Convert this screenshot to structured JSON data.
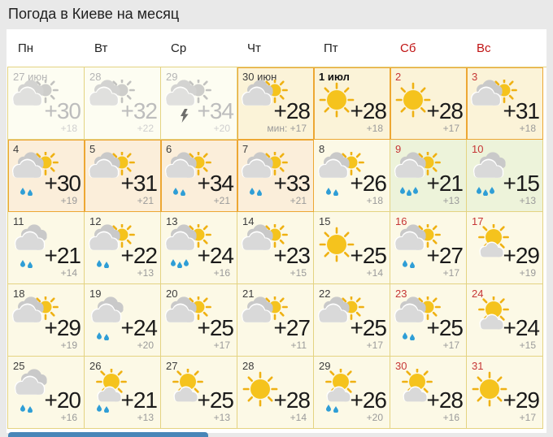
{
  "title": "Погода в Киеве на месяц",
  "weekday_header": [
    {
      "label": "Пн",
      "weekend": false
    },
    {
      "label": "Вт",
      "weekend": false
    },
    {
      "label": "Ср",
      "weekend": false
    },
    {
      "label": "Чт",
      "weekend": false
    },
    {
      "label": "Пт",
      "weekend": false
    },
    {
      "label": "Сб",
      "weekend": true
    },
    {
      "label": "Вс",
      "weekend": true
    }
  ],
  "calendar": {
    "days": [
      {
        "date": "27 июн",
        "temp_max": "+30",
        "temp_min": "+18",
        "icon": "cloud-sun",
        "past": true,
        "weekend": false,
        "highlight": false,
        "bg": "past"
      },
      {
        "date": "28",
        "temp_max": "+32",
        "temp_min": "+22",
        "icon": "cloud-sun",
        "past": true,
        "weekend": false,
        "highlight": false,
        "bg": "past"
      },
      {
        "date": "29",
        "temp_max": "+34",
        "temp_min": "+20",
        "icon": "cloud-sun-thunder",
        "past": true,
        "weekend": false,
        "highlight": false,
        "bg": "past"
      },
      {
        "date": "30 июн",
        "temp_max": "+28",
        "temp_min": "+17",
        "min_label": "мин:",
        "icon": "cloud-sun",
        "past": false,
        "weekend": false,
        "highlight": true,
        "bg": "warm"
      },
      {
        "date": "1 июл",
        "temp_max": "+28",
        "temp_min": "+18",
        "icon": "sun",
        "past": false,
        "weekend": false,
        "bold": true,
        "highlight": true,
        "bg": "warm"
      },
      {
        "date": "2",
        "temp_max": "+28",
        "temp_min": "+17",
        "icon": "sun",
        "past": false,
        "weekend": true,
        "highlight": true,
        "bg": "warm"
      },
      {
        "date": "3",
        "temp_max": "+31",
        "temp_min": "+18",
        "icon": "cloud-sun",
        "past": false,
        "weekend": true,
        "highlight": true,
        "bg": "warm"
      },
      {
        "date": "4",
        "temp_max": "+30",
        "temp_min": "+19",
        "icon": "cloud-sun-rain2",
        "past": false,
        "weekend": false,
        "highlight": true,
        "bg": "peach"
      },
      {
        "date": "5",
        "temp_max": "+31",
        "temp_min": "+21",
        "icon": "cloud-sun",
        "past": false,
        "weekend": false,
        "highlight": true,
        "bg": "peach"
      },
      {
        "date": "6",
        "temp_max": "+34",
        "temp_min": "+21",
        "icon": "cloud-sun-rain2",
        "past": false,
        "weekend": false,
        "highlight": true,
        "bg": "peach"
      },
      {
        "date": "7",
        "temp_max": "+33",
        "temp_min": "+21",
        "icon": "cloud-sun-rain2",
        "past": false,
        "weekend": false,
        "highlight": true,
        "bg": "peach"
      },
      {
        "date": "8",
        "temp_max": "+26",
        "temp_min": "+18",
        "icon": "cloud-sun-rain2",
        "past": false,
        "weekend": false,
        "highlight": false,
        "bg": "cream"
      },
      {
        "date": "9",
        "temp_max": "+21",
        "temp_min": "+13",
        "icon": "cloud-sun-rain3",
        "past": false,
        "weekend": true,
        "highlight": false,
        "bg": "green"
      },
      {
        "date": "10",
        "temp_max": "+15",
        "temp_min": "+13",
        "icon": "cloud-rain3",
        "past": false,
        "weekend": true,
        "highlight": false,
        "bg": "green"
      },
      {
        "date": "11",
        "temp_max": "+21",
        "temp_min": "+14",
        "icon": "cloud-rain2",
        "past": false,
        "weekend": false,
        "highlight": false,
        "bg": "cream"
      },
      {
        "date": "12",
        "temp_max": "+22",
        "temp_min": "+13",
        "icon": "cloud-sun-rain2",
        "past": false,
        "weekend": false,
        "highlight": false,
        "bg": "cream"
      },
      {
        "date": "13",
        "temp_max": "+24",
        "temp_min": "+16",
        "icon": "cloud-sun-rain3",
        "past": false,
        "weekend": false,
        "highlight": false,
        "bg": "cream"
      },
      {
        "date": "14",
        "temp_max": "+23",
        "temp_min": "+15",
        "icon": "cloud-sun",
        "past": false,
        "weekend": false,
        "highlight": false,
        "bg": "cream"
      },
      {
        "date": "15",
        "temp_max": "+25",
        "temp_min": "+14",
        "icon": "sun",
        "past": false,
        "weekend": false,
        "highlight": false,
        "bg": "cream"
      },
      {
        "date": "16",
        "temp_max": "+27",
        "temp_min": "+17",
        "icon": "cloud-sun-rain2",
        "past": false,
        "weekend": true,
        "highlight": false,
        "bg": "cream"
      },
      {
        "date": "17",
        "temp_max": "+29",
        "temp_min": "+19",
        "icon": "sun-cloud",
        "past": false,
        "weekend": true,
        "highlight": false,
        "bg": "cream"
      },
      {
        "date": "18",
        "temp_max": "+29",
        "temp_min": "+19",
        "icon": "cloud-sun",
        "past": false,
        "weekend": false,
        "highlight": false,
        "bg": "cream"
      },
      {
        "date": "19",
        "temp_max": "+24",
        "temp_min": "+20",
        "icon": "cloud-rain2",
        "past": false,
        "weekend": false,
        "highlight": false,
        "bg": "cream"
      },
      {
        "date": "20",
        "temp_max": "+25",
        "temp_min": "+17",
        "icon": "cloud-sun",
        "past": false,
        "weekend": false,
        "highlight": false,
        "bg": "cream"
      },
      {
        "date": "21",
        "temp_max": "+27",
        "temp_min": "+11",
        "icon": "cloud-sun",
        "past": false,
        "weekend": false,
        "highlight": false,
        "bg": "cream"
      },
      {
        "date": "22",
        "temp_max": "+25",
        "temp_min": "+17",
        "icon": "cloud-sun",
        "past": false,
        "weekend": false,
        "highlight": false,
        "bg": "cream"
      },
      {
        "date": "23",
        "temp_max": "+25",
        "temp_min": "+17",
        "icon": "cloud-sun-rain2",
        "past": false,
        "weekend": true,
        "highlight": false,
        "bg": "cream"
      },
      {
        "date": "24",
        "temp_max": "+24",
        "temp_min": "+15",
        "icon": "sun-cloud",
        "past": false,
        "weekend": true,
        "highlight": false,
        "bg": "cream"
      },
      {
        "date": "25",
        "temp_max": "+20",
        "temp_min": "+16",
        "icon": "cloud-rain2",
        "past": false,
        "weekend": false,
        "highlight": false,
        "bg": "cream"
      },
      {
        "date": "26",
        "temp_max": "+21",
        "temp_min": "+13",
        "icon": "sun-cloud-rain2",
        "past": false,
        "weekend": false,
        "highlight": false,
        "bg": "cream"
      },
      {
        "date": "27",
        "temp_max": "+25",
        "temp_min": "+13",
        "icon": "sun-cloud",
        "past": false,
        "weekend": false,
        "highlight": false,
        "bg": "cream"
      },
      {
        "date": "28",
        "temp_max": "+28",
        "temp_min": "+14",
        "icon": "sun",
        "past": false,
        "weekend": false,
        "highlight": false,
        "bg": "cream"
      },
      {
        "date": "29",
        "temp_max": "+26",
        "temp_min": "+20",
        "icon": "sun-cloud-rain2",
        "past": false,
        "weekend": false,
        "highlight": false,
        "bg": "cream"
      },
      {
        "date": "30",
        "temp_max": "+28",
        "temp_min": "+16",
        "icon": "sun-cloud",
        "past": false,
        "weekend": true,
        "highlight": false,
        "bg": "cream"
      },
      {
        "date": "31",
        "temp_max": "+29",
        "temp_min": "+17",
        "icon": "sun",
        "past": false,
        "weekend": true,
        "highlight": false,
        "bg": "cream"
      }
    ]
  },
  "colors": {
    "page_bg": "#e9e9e9",
    "panel_bg": "#ffffff",
    "grid_border": "#e4d382",
    "highlight_border": "#eda733",
    "weekend_red": "#c01414",
    "sun_yellow": "#f5c31d",
    "rain_blue": "#2f9ed6",
    "cell_cream": "#fcf9e6",
    "cell_peach": "#fbeeda",
    "cell_green": "#edf3da",
    "bottom_bar_blue": "#4886b8"
  }
}
